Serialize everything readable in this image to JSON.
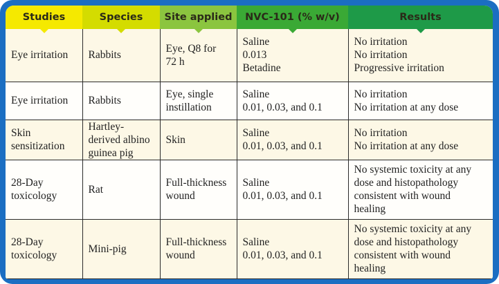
{
  "colors": {
    "frame": "#1b6ec2",
    "h0": "#f5e900",
    "h1": "#d4dc00",
    "h2": "#8bc53f",
    "h3": "#3aa935",
    "h4": "#1e9a48"
  },
  "headers": [
    "Studies",
    "Species",
    "Site applied",
    "NVC-101 (% w/v)",
    "Results"
  ],
  "rows": [
    {
      "study": [
        "Eye irritation"
      ],
      "species": [
        "Rabbits"
      ],
      "site": [
        "Eye, Q8 for",
        "72 h"
      ],
      "nvc": [
        "Saline",
        "0.013",
        "Betadine"
      ],
      "results": [
        "No irritation",
        "No irritation",
        "Progressive irritation"
      ]
    },
    {
      "study": [
        "Eye irritation"
      ],
      "species": [
        "Rabbits"
      ],
      "site": [
        "Eye, single",
        "instillation"
      ],
      "nvc": [
        "Saline",
        "0.01, 0.03, and 0.1"
      ],
      "results": [
        "No irritation",
        "No irritation at any dose"
      ]
    },
    {
      "study": [
        "Skin",
        "sensitization"
      ],
      "species": [
        "Hartley-",
        "derived albino",
        "guinea pig"
      ],
      "site": [
        "Skin"
      ],
      "nvc": [
        "Saline",
        "0.01, 0.03, and 0.1"
      ],
      "results": [
        "No irritation",
        "No irritation at any dose"
      ]
    },
    {
      "study": [
        "28-Day",
        "toxicology"
      ],
      "species": [
        "Rat"
      ],
      "site": [
        "Full-thickness",
        "wound"
      ],
      "nvc": [
        "Saline",
        "0.01, 0.03, and 0.1"
      ],
      "results": [
        "No systemic toxicity at any",
        "dose and histopathology",
        "consistent with wound",
        "healing"
      ]
    },
    {
      "study": [
        "28-Day",
        "toxicology"
      ],
      "species": [
        "Mini-pig"
      ],
      "site": [
        "Full-thickness",
        "wound"
      ],
      "nvc": [
        "Saline",
        "0.01, 0.03, and 0.1"
      ],
      "results": [
        "No systemic toxicity at any",
        "dose and histopathology",
        "consistent with wound",
        "healing"
      ]
    }
  ]
}
